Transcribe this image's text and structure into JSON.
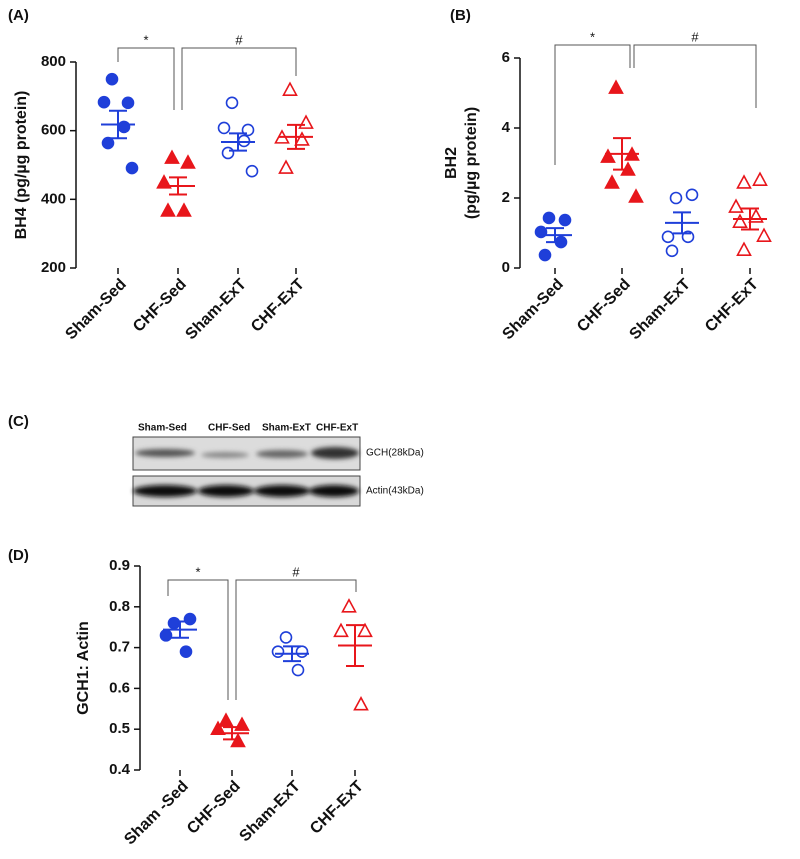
{
  "chart_data": [
    {
      "type": "scatter",
      "panel": "(A)",
      "ylabel": [
        "BH4 (pg/µg protein)"
      ],
      "categories": [
        "Sham-Sed",
        "CHF-Sed",
        "Sham-ExT",
        "CHF-ExT"
      ],
      "colors": [
        "#1f3fd9",
        "#e8161b",
        "#1f3fd9",
        "#e8161b"
      ],
      "markers": [
        "circle",
        "triangle",
        "circle",
        "triangle"
      ],
      "filled": [
        true,
        true,
        false,
        false
      ],
      "points": [
        [
          750,
          681,
          683,
          611,
          564,
          491
        ],
        [
          520,
          506,
          448,
          366,
          366
        ],
        [
          681,
          602,
          608,
          570,
          535,
          482
        ],
        [
          718,
          622,
          579,
          573,
          491
        ]
      ],
      "means": [
        618,
        439,
        567,
        582
      ],
      "sems": [
        40,
        25,
        25,
        35
      ],
      "annotations": [
        "*",
        "#"
      ],
      "ylim": [
        200,
        800
      ],
      "yticks": [
        200,
        400,
        600,
        800
      ]
    },
    {
      "type": "scatter",
      "panel": "(B)",
      "ylabel": [
        "BH2",
        "(pg/µg protein)"
      ],
      "categories": [
        "Sham-Sed",
        "CHF-Sed",
        "Sham-ExT",
        "CHF-ExT"
      ],
      "colors": [
        "#1f3fd9",
        "#e8161b",
        "#1f3fd9",
        "#e8161b"
      ],
      "markers": [
        "circle",
        "triangle",
        "circle",
        "triangle"
      ],
      "filled": [
        true,
        true,
        false,
        false
      ],
      "points": [
        [
          1.43,
          1.37,
          1.03,
          0.74,
          0.37
        ],
        [
          5.14,
          3.23,
          3.17,
          2.8,
          2.43,
          2.03
        ],
        [
          2.0,
          2.09,
          0.89,
          0.89,
          0.49
        ],
        [
          2.43,
          2.51,
          1.74,
          1.46,
          1.31,
          0.91,
          0.51
        ]
      ],
      "means": [
        0.94,
        3.26,
        1.29,
        1.4
      ],
      "sems": [
        0.2,
        0.45,
        0.3,
        0.3
      ],
      "annotations": [
        "*",
        "#"
      ],
      "ylim": [
        0,
        6
      ],
      "yticks": [
        0,
        2,
        4,
        6
      ]
    },
    {
      "type": "scatter",
      "panel": "(D)",
      "ylabel": [
        "GCH1: Actin"
      ],
      "categories": [
        "Sham -Sed",
        "CHF-Sed",
        "Sham-ExT",
        "CHF-ExT"
      ],
      "colors": [
        "#1f3fd9",
        "#e8161b",
        "#1f3fd9",
        "#e8161b"
      ],
      "markers": [
        "circle",
        "triangle",
        "circle",
        "triangle"
      ],
      "filled": [
        true,
        true,
        false,
        false
      ],
      "points": [
        [
          0.76,
          0.77,
          0.73,
          0.69
        ],
        [
          0.52,
          0.51,
          0.5,
          0.47
        ],
        [
          0.725,
          0.69,
          0.69,
          0.645
        ],
        [
          0.8,
          0.74,
          0.74,
          0.56
        ]
      ],
      "means": [
        0.744,
        0.49,
        0.685,
        0.705
      ],
      "sems": [
        0.02,
        0.015,
        0.018,
        0.05
      ],
      "annotations": [
        "*",
        "#"
      ],
      "ylim": [
        0.4,
        0.9
      ],
      "yticks": [
        0.4,
        0.5,
        0.6,
        0.7,
        0.8,
        0.9
      ]
    }
  ],
  "blot": {
    "panel": "(C)",
    "lanes": [
      "Sham-Sed",
      "CHF-Sed",
      "Sham-ExT",
      "CHF-ExT"
    ],
    "rows": [
      "GCH(28kDa)",
      "Actin(43kDa)"
    ]
  }
}
